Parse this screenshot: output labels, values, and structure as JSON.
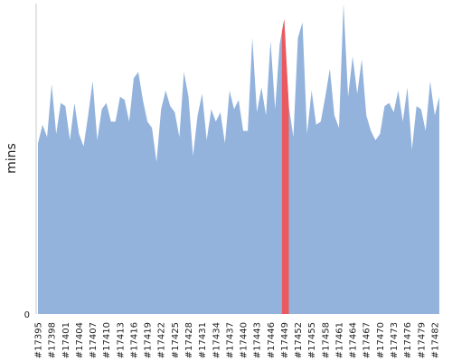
{
  "chart_data": {
    "type": "area",
    "title": "",
    "xlabel": "",
    "ylabel": "mins",
    "ylim": [
      0,
      100
    ],
    "yticks": [
      "0"
    ],
    "grid": false,
    "legend": "none",
    "colors": {
      "area": "#93b3dc",
      "highlight": "#e9595d",
      "axis": "#c8c8c8"
    },
    "x_tick_labels": [
      "#17395",
      "#17398",
      "#17401",
      "#17404",
      "#17407",
      "#17410",
      "#17413",
      "#17416",
      "#17419",
      "#17422",
      "#17425",
      "#17428",
      "#17431",
      "#17434",
      "#17437",
      "#17440",
      "#17443",
      "#17446",
      "#17449",
      "#17452",
      "#17455",
      "#17458",
      "#17461",
      "#17464",
      "#17467",
      "#17470",
      "#17473",
      "#17476",
      "#17479",
      "#17482"
    ],
    "x_start": 17395,
    "x_end": 17484,
    "highlight_range": [
      17448.5,
      17450.0
    ],
    "values": [
      55,
      61,
      57,
      74,
      58,
      68,
      67,
      56,
      68,
      58,
      54,
      64,
      75,
      56,
      66,
      68,
      62,
      62,
      70,
      69,
      62,
      76,
      78,
      69,
      62,
      60,
      49,
      66,
      72,
      67,
      65,
      57,
      78,
      70,
      51,
      64,
      71,
      56,
      66,
      62,
      65,
      55,
      72,
      66,
      69,
      59,
      59,
      89,
      65,
      73,
      64,
      88,
      66,
      87,
      95,
      67,
      57,
      89,
      94,
      58,
      72,
      61,
      62,
      70,
      79,
      64,
      60,
      100,
      70,
      83,
      71,
      82,
      64,
      59,
      56,
      58,
      67,
      68,
      65,
      72,
      62,
      73,
      53,
      67,
      66,
      59,
      75,
      64,
      70
    ]
  }
}
